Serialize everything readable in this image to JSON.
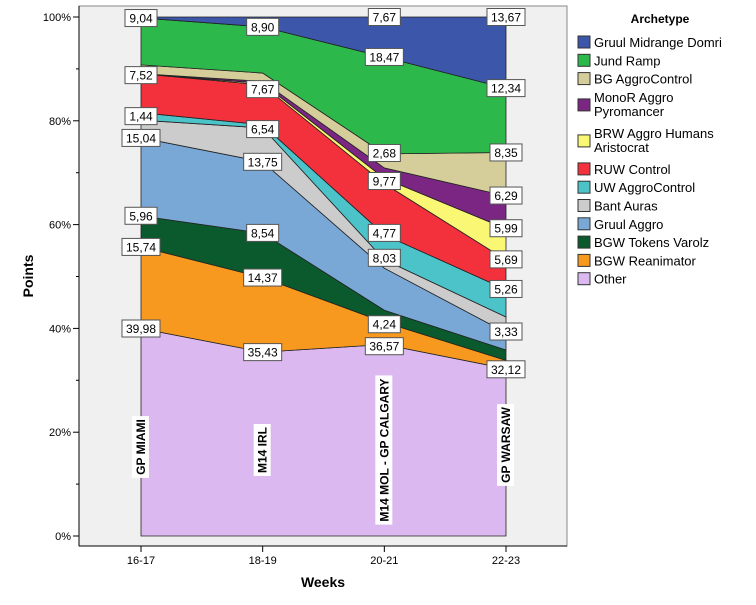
{
  "chart_data": {
    "type": "area",
    "stacked": true,
    "percent": true,
    "title": "",
    "xlabel": "Weeks",
    "ylabel": "Points",
    "categories": [
      "16-17",
      "18-19",
      "20-21",
      "22-23"
    ],
    "ylim": [
      0,
      100
    ],
    "yticks": [
      "0%",
      "20%",
      "40%",
      "60%",
      "80%",
      "100%"
    ],
    "legend_title": "Archetype",
    "legend_position": "right",
    "series": [
      {
        "name": "Other",
        "color": "#dcb8f0",
        "values": [
          39.98,
          35.43,
          36.57,
          32.12
        ]
      },
      {
        "name": "BGW Reanimator",
        "color": "#f7981f",
        "values": [
          15.74,
          14.37,
          4.24,
          1.6
        ]
      },
      {
        "name": "BGW Tokens Varolz",
        "color": "#0a5a2e",
        "values": [
          5.96,
          8.54,
          2.3,
          2.0
        ]
      },
      {
        "name": "Gruul Aggro",
        "color": "#7aa8d6",
        "values": [
          15.04,
          13.75,
          8.03,
          3.33
        ]
      },
      {
        "name": "Bant Auras",
        "color": "#cccccc",
        "values": [
          3.4,
          6.54,
          1.6,
          3.0
        ]
      },
      {
        "name": "UW AggroControl",
        "color": "#4cc3c9",
        "values": [
          1.44,
          0.6,
          4.77,
          5.26
        ]
      },
      {
        "name": "RUW Control",
        "color": "#f2313c",
        "values": [
          7.52,
          7.67,
          9.77,
          5.69
        ]
      },
      {
        "name": "BRW Aggro Humans Aristocrat",
        "color": "#faf774",
        "values": [
          0,
          0.3,
          1.0,
          5.99
        ]
      },
      {
        "name": "MonoR Aggro Pyromancer",
        "color": "#7b2682",
        "values": [
          0,
          0.4,
          2.0,
          6.29
        ]
      },
      {
        "name": "BG AggroControl",
        "color": "#d5ce9a",
        "values": [
          1.7,
          1.6,
          2.68,
          8.35
        ]
      },
      {
        "name": "Jund Ramp",
        "color": "#2db84b",
        "values": [
          9.04,
          8.9,
          18.47,
          12.34
        ]
      },
      {
        "name": "Gruul Midrange Domri",
        "color": "#3c56aa",
        "values": [
          0.18,
          1.9,
          7.67,
          13.67
        ]
      }
    ],
    "data_labels": [
      {
        "x": "16-17",
        "text": "9,04",
        "at": 99.8
      },
      {
        "x": "16-17",
        "text": "7,52",
        "at": 88.8
      },
      {
        "x": "16-17",
        "text": "1,44",
        "at": 80.9
      },
      {
        "x": "16-17",
        "text": "15,04",
        "at": 76.7
      },
      {
        "x": "16-17",
        "text": "5,96",
        "at": 61.7
      },
      {
        "x": "16-17",
        "text": "15,74",
        "at": 55.7
      },
      {
        "x": "16-17",
        "text": "39,98",
        "at": 39.98
      },
      {
        "x": "18-19",
        "text": "8,90",
        "at": 98.1
      },
      {
        "x": "18-19",
        "text": "7,67",
        "at": 86.1
      },
      {
        "x": "18-19",
        "text": "6,54",
        "at": 78.4
      },
      {
        "x": "18-19",
        "text": "13,75",
        "at": 72.1
      },
      {
        "x": "18-19",
        "text": "8,54",
        "at": 58.4
      },
      {
        "x": "18-19",
        "text": "14,37",
        "at": 49.8
      },
      {
        "x": "18-19",
        "text": "35,43",
        "at": 35.43
      },
      {
        "x": "20-21",
        "text": "7,67",
        "at": 100
      },
      {
        "x": "20-21",
        "text": "18,47",
        "at": 92.3
      },
      {
        "x": "20-21",
        "text": "2,68",
        "at": 73.8
      },
      {
        "x": "20-21",
        "text": "9,77",
        "at": 68.4
      },
      {
        "x": "20-21",
        "text": "4,77",
        "at": 58.4
      },
      {
        "x": "20-21",
        "text": "8,03",
        "at": 53.6
      },
      {
        "x": "20-21",
        "text": "4,24",
        "at": 40.8
      },
      {
        "x": "20-21",
        "text": "36,57",
        "at": 36.57
      },
      {
        "x": "22-23",
        "text": "13,67",
        "at": 100
      },
      {
        "x": "22-23",
        "text": "12,34",
        "at": 86.3
      },
      {
        "x": "22-23",
        "text": "8,35",
        "at": 73.9
      },
      {
        "x": "22-23",
        "text": "6,29",
        "at": 65.6
      },
      {
        "x": "22-23",
        "text": "5,99",
        "at": 59.3
      },
      {
        "x": "22-23",
        "text": "5,69",
        "at": 53.3
      },
      {
        "x": "22-23",
        "text": "5,26",
        "at": 47.6
      },
      {
        "x": "22-23",
        "text": "3,33",
        "at": 39.4
      },
      {
        "x": "22-23",
        "text": "32,12",
        "at": 32.12
      }
    ],
    "annotations": [
      {
        "x": "16-17",
        "text": "GP MIAMI"
      },
      {
        "x": "18-19",
        "text": "M14 IRL"
      },
      {
        "x": "20-21",
        "text": "M14 MOL - GP CALGARY"
      },
      {
        "x": "22-23",
        "text": "GP WARSAW"
      }
    ],
    "legend_items": [
      {
        "label": [
          "Gruul Midrange Domri"
        ],
        "color": "#3c56aa"
      },
      {
        "label": [
          "Jund Ramp"
        ],
        "color": "#2db84b"
      },
      {
        "label": [
          "BG AggroControl"
        ],
        "color": "#d5ce9a"
      },
      {
        "label": [
          "MonoR Aggro",
          "Pyromancer"
        ],
        "color": "#7b2682"
      },
      {
        "label": [
          "BRW Aggro Humans",
          "Aristocrat"
        ],
        "color": "#faf774"
      },
      {
        "label": [
          "RUW Control"
        ],
        "color": "#f2313c"
      },
      {
        "label": [
          "UW AggroControl"
        ],
        "color": "#4cc3c9"
      },
      {
        "label": [
          "Bant Auras"
        ],
        "color": "#cccccc"
      },
      {
        "label": [
          "Gruul Aggro"
        ],
        "color": "#7aa8d6"
      },
      {
        "label": [
          "BGW Tokens Varolz"
        ],
        "color": "#0a5a2e"
      },
      {
        "label": [
          "BGW Reanimator"
        ],
        "color": "#f7981f"
      },
      {
        "label": [
          "Other"
        ],
        "color": "#dcb8f0"
      }
    ]
  }
}
